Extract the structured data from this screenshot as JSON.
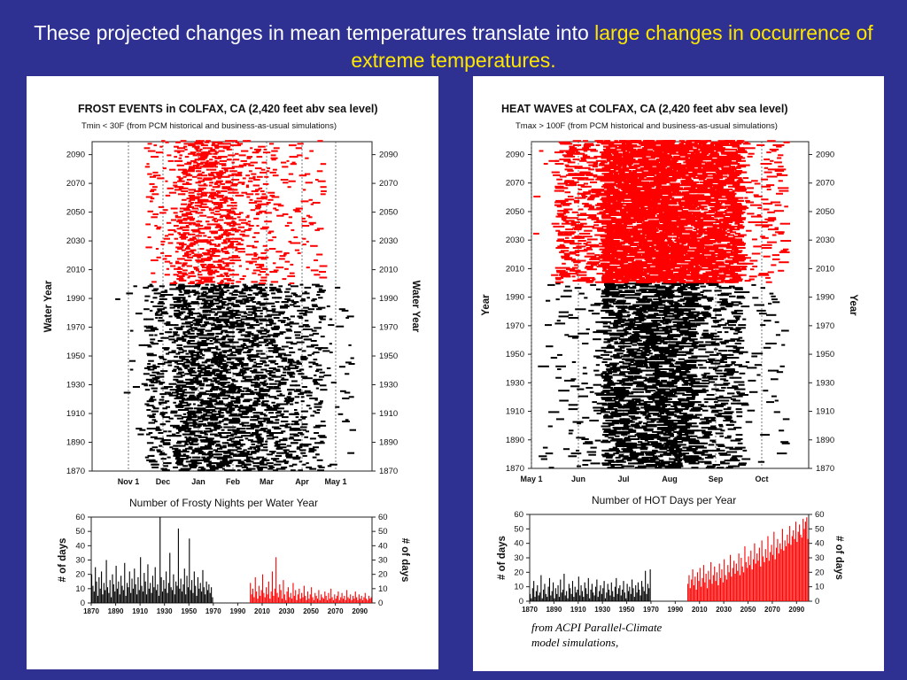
{
  "slide": {
    "title_part1": "These projected changes in mean temperatures translate into ",
    "title_highlight": "large changes in occurrence of extreme temperatures.",
    "credit_line1": "from ACPI Parallel-Climate",
    "credit_line2": "model simulations,"
  },
  "colors": {
    "background": "#2e3192",
    "highlight": "#ffe600",
    "historical": "#000000",
    "future": "#ff0000"
  },
  "chart_data": [
    {
      "type": "scatter",
      "title": "FROST EVENTS in COLFAX, CA (2,420 feet abv sea level)",
      "subtitle": "Tmin < 30F (from PCM historical and business-as-usual simulations)",
      "ylabel": "Water Year",
      "ylabel_right": "Water Year",
      "ylim": [
        1870,
        2099
      ],
      "yticks": [
        1870,
        1890,
        1910,
        1930,
        1950,
        1970,
        1990,
        2010,
        2030,
        2050,
        2070,
        2090
      ],
      "xticks": [
        "Nov 1",
        "Dec",
        "Jan",
        "Feb",
        "Mar",
        "Apr",
        "May 1"
      ],
      "series": [
        {
          "period": [
            1870,
            1999
          ],
          "color": "#000000",
          "density_by_month": [
            0.02,
            0.35,
            0.85,
            0.9,
            0.75,
            0.5,
            0.3,
            0.05
          ]
        },
        {
          "period": [
            2000,
            2099
          ],
          "color": "#ff0000",
          "density_by_month": [
            0.0,
            0.15,
            0.6,
            0.7,
            0.3,
            0.15,
            0.1,
            0.0
          ]
        }
      ]
    },
    {
      "type": "bar",
      "title": "Number of Frosty Nights per Water Year",
      "ylabel": "# of days",
      "ylabel_right": "# of days",
      "ylim": [
        0,
        60
      ],
      "yticks": [
        0,
        10,
        20,
        30,
        40,
        50,
        60
      ],
      "xticks": [
        1870,
        1890,
        1910,
        1930,
        1950,
        1970,
        1990,
        2010,
        2030,
        2050,
        2070,
        2090
      ],
      "series": [
        {
          "name": "historical",
          "start_year": 1870,
          "color": "#000000",
          "values": [
            20,
            12,
            8,
            25,
            15,
            5,
            18,
            10,
            22,
            6,
            14,
            9,
            30,
            11,
            7,
            16,
            4,
            20,
            13,
            8,
            26,
            10,
            15,
            6,
            19,
            12,
            9,
            28,
            5,
            14,
            11,
            22,
            7,
            17,
            10,
            24,
            13,
            6,
            18,
            9,
            32,
            12,
            8,
            21,
            15,
            6,
            27,
            10,
            14,
            7,
            19,
            11,
            25,
            9,
            13,
            5,
            60,
            18,
            8,
            16,
            10,
            22,
            7,
            14,
            35,
            11,
            9,
            20,
            6,
            15,
            12,
            52,
            10,
            17,
            8,
            13,
            24,
            6,
            19,
            11,
            45,
            9,
            16,
            7,
            22,
            12,
            5,
            18,
            10,
            14,
            8,
            23,
            11,
            6,
            15,
            9,
            13,
            7,
            11,
            4
          ]
        },
        {
          "name": "projected",
          "start_year": 2000,
          "color": "#ff0000",
          "values": [
            14,
            6,
            10,
            4,
            18,
            8,
            3,
            12,
            5,
            9,
            20,
            7,
            4,
            11,
            6,
            15,
            3,
            8,
            22,
            5,
            10,
            32,
            7,
            4,
            13,
            9,
            3,
            16,
            6,
            2,
            8,
            11,
            4,
            7,
            3,
            14,
            5,
            9,
            2,
            6,
            10,
            3,
            7,
            4,
            12,
            5,
            2,
            8,
            3,
            6,
            11,
            4,
            2,
            7,
            5,
            3,
            9,
            2,
            6,
            4,
            3,
            8,
            5,
            2,
            7,
            3,
            10,
            4,
            2,
            6,
            3,
            5,
            8,
            2,
            4,
            7,
            3,
            5,
            2,
            9,
            4,
            3,
            6,
            2,
            5,
            3,
            8,
            4,
            2,
            6,
            3,
            5,
            2,
            4,
            7,
            3,
            2,
            5,
            3,
            4
          ]
        }
      ]
    },
    {
      "type": "scatter",
      "title": "HEAT WAVES at COLFAX, CA (2,420 feet abv sea level)",
      "subtitle": "Tmax > 100F (from PCM historical and business-as-usual simulations)",
      "ylabel": "Year",
      "ylabel_right": "Year",
      "ylim": [
        1870,
        2099
      ],
      "yticks": [
        1870,
        1890,
        1910,
        1930,
        1950,
        1970,
        1990,
        2010,
        2030,
        2050,
        2070,
        2090
      ],
      "xticks": [
        "May 1",
        "Jun",
        "Jul",
        "Aug",
        "Sep",
        "Oct"
      ],
      "series": [
        {
          "period": [
            1870,
            1999
          ],
          "color": "#000000",
          "density_by_month": [
            0.01,
            0.05,
            0.45,
            0.5,
            0.2,
            0.03
          ]
        },
        {
          "period": [
            2000,
            2099
          ],
          "color": "#ff0000",
          "density_by_month": [
            0.02,
            0.25,
            0.95,
            0.95,
            0.7,
            0.08
          ]
        }
      ]
    },
    {
      "type": "bar",
      "title": "Number of HOT Days per Year",
      "ylabel": "# of days",
      "ylabel_right": "# of days",
      "ylim": [
        0,
        60
      ],
      "yticks": [
        0,
        10,
        20,
        30,
        40,
        50,
        60
      ],
      "xticks": [
        1870,
        1890,
        1910,
        1930,
        1950,
        1970,
        1990,
        2010,
        2030,
        2050,
        2070,
        2090
      ],
      "series": [
        {
          "name": "historical",
          "start_year": 1870,
          "color": "#000000",
          "values": [
            5,
            2,
            9,
            14,
            3,
            7,
            11,
            4,
            6,
            18,
            2,
            8,
            12,
            5,
            3,
            10,
            16,
            4,
            7,
            13,
            2,
            9,
            5,
            11,
            3,
            15,
            6,
            8,
            19,
            4,
            7,
            2,
            12,
            9,
            5,
            14,
            3,
            10,
            6,
            8,
            17,
            4,
            11,
            7,
            3,
            13,
            9,
            5,
            16,
            2,
            8,
            12,
            6,
            4,
            10,
            15,
            3,
            7,
            11,
            5,
            9,
            14,
            2,
            6,
            12,
            8,
            4,
            13,
            7,
            3,
            10,
            16,
            5,
            9,
            11,
            4,
            8,
            14,
            6,
            2,
            12,
            7,
            10,
            5,
            15,
            9,
            3,
            11,
            6,
            13,
            8,
            4,
            14,
            10,
            7,
            21,
            5,
            12,
            9,
            22
          ]
        },
        {
          "name": "projected",
          "start_year": 2000,
          "color": "#ff0000",
          "values": [
            12,
            18,
            9,
            15,
            22,
            11,
            17,
            8,
            20,
            14,
            23,
            10,
            16,
            25,
            13,
            19,
            9,
            21,
            15,
            27,
            12,
            18,
            24,
            14,
            20,
            11,
            26,
            16,
            22,
            13,
            29,
            18,
            15,
            25,
            20,
            32,
            17,
            23,
            28,
            19,
            26,
            21,
            33,
            18,
            30,
            24,
            20,
            38,
            27,
            23,
            31,
            25,
            35,
            22,
            29,
            40,
            26,
            33,
            28,
            37,
            24,
            42,
            31,
            27,
            36,
            30,
            45,
            28,
            34,
            39,
            32,
            48,
            29,
            37,
            43,
            33,
            40,
            36,
            50,
            35,
            42,
            38,
            46,
            40,
            52,
            39,
            45,
            49,
            43,
            55,
            41,
            48,
            53,
            46,
            44,
            57,
            50,
            55,
            58,
            43
          ]
        }
      ]
    }
  ]
}
